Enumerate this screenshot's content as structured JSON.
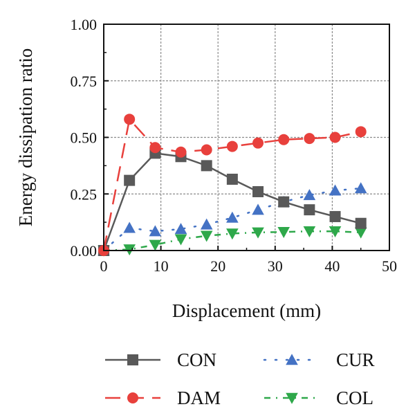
{
  "chart_data": {
    "type": "line",
    "title": "",
    "xlabel": "Displacement (mm)",
    "ylabel": "Energy dissipation ratio",
    "xlim": [
      0,
      50
    ],
    "ylim": [
      0,
      1.0
    ],
    "x_ticks": [
      "0",
      "10",
      "20",
      "30",
      "40",
      "50"
    ],
    "y_ticks": [
      "0.00",
      "0.25",
      "0.50",
      "0.75",
      "1.00"
    ],
    "grid": true,
    "legend_position": "bottom",
    "series": [
      {
        "name": "CON",
        "color": "#595959",
        "marker": "square",
        "line_style": "solid",
        "x": [
          0,
          4.5,
          9.0,
          13.5,
          18.0,
          22.5,
          27.0,
          31.5,
          36.0,
          40.5,
          45.0
        ],
        "y": [
          0.0,
          0.31,
          0.43,
          0.415,
          0.375,
          0.315,
          0.26,
          0.215,
          0.18,
          0.15,
          0.12
        ]
      },
      {
        "name": "CUR",
        "color": "#4472C4",
        "marker": "triangle-up",
        "line_style": "dotted",
        "x": [
          0,
          4.5,
          9.0,
          13.5,
          18.0,
          22.5,
          27.0,
          31.5,
          36.0,
          40.5,
          45.0
        ],
        "y": [
          0.0,
          0.1,
          0.085,
          0.095,
          0.115,
          0.145,
          0.18,
          0.215,
          0.245,
          0.265,
          0.275
        ]
      },
      {
        "name": "DAM",
        "color": "#E8403C",
        "marker": "circle",
        "line_style": "dashed",
        "x": [
          0,
          4.5,
          9.0,
          13.5,
          18.0,
          22.5,
          27.0,
          31.5,
          36.0,
          40.5,
          45.0
        ],
        "y": [
          0.0,
          0.58,
          0.455,
          0.435,
          0.445,
          0.46,
          0.475,
          0.49,
          0.495,
          0.5,
          0.525
        ]
      },
      {
        "name": "COL",
        "color": "#2EA84A",
        "marker": "triangle-down",
        "line_style": "dash-dot",
        "x": [
          0,
          4.5,
          9.0,
          13.5,
          18.0,
          22.5,
          27.0,
          31.5,
          36.0,
          40.5,
          45.0
        ],
        "y": [
          0.0,
          0.005,
          0.025,
          0.05,
          0.065,
          0.075,
          0.08,
          0.082,
          0.085,
          0.085,
          0.08
        ]
      }
    ]
  }
}
